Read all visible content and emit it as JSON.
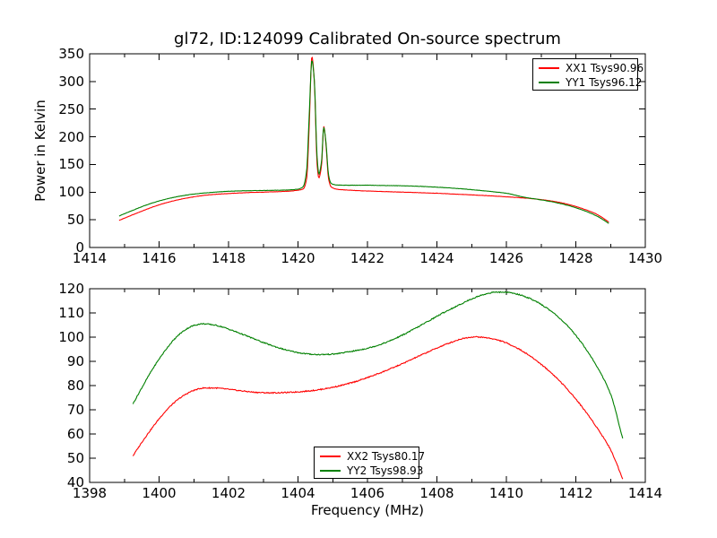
{
  "figure": {
    "background": "#ffffff"
  },
  "chart_data": [
    {
      "type": "line",
      "title": "gl72, ID:124099 Calibrated On-source spectrum",
      "xlabel": "",
      "ylabel": "Power in Kelvin",
      "xlim": [
        1414,
        1430
      ],
      "ylim": [
        0,
        350
      ],
      "xticks": [
        1414,
        1416,
        1418,
        1420,
        1422,
        1424,
        1426,
        1428,
        1430
      ],
      "xticks_minor": [
        1415,
        1417,
        1419,
        1421,
        1423,
        1425,
        1427,
        1429
      ],
      "yticks": [
        0,
        50,
        100,
        150,
        200,
        250,
        300,
        350
      ],
      "grid": false,
      "legend_position": "upper right",
      "series": [
        {
          "label": "XX1 Tsys90.96",
          "color": "#ff0000",
          "noise": 0.5,
          "seed": 1,
          "points": [
            [
              1414.85,
              49
            ],
            [
              1415.2,
              58
            ],
            [
              1415.6,
              68
            ],
            [
              1416.0,
              77
            ],
            [
              1416.5,
              85.5
            ],
            [
              1417.0,
              91.5
            ],
            [
              1417.5,
              95.5
            ],
            [
              1418.0,
              97.5
            ],
            [
              1418.5,
              99
            ],
            [
              1419.0,
              100
            ],
            [
              1419.5,
              101
            ],
            [
              1420.0,
              103.5
            ],
            [
              1420.15,
              106
            ],
            [
              1420.25,
              125
            ],
            [
              1420.32,
              215
            ],
            [
              1420.4,
              345
            ],
            [
              1420.47,
              300
            ],
            [
              1420.55,
              150
            ],
            [
              1420.6,
              126
            ],
            [
              1420.68,
              150
            ],
            [
              1420.74,
              219
            ],
            [
              1420.8,
              190
            ],
            [
              1420.88,
              124
            ],
            [
              1420.95,
              110
            ],
            [
              1421.1,
              105.5
            ],
            [
              1421.5,
              103.5
            ],
            [
              1422.0,
              102
            ],
            [
              1422.5,
              101
            ],
            [
              1423.0,
              100
            ],
            [
              1423.5,
              99
            ],
            [
              1424.0,
              98
            ],
            [
              1424.5,
              96.5
            ],
            [
              1425.0,
              95
            ],
            [
              1425.5,
              93.5
            ],
            [
              1426.0,
              91.5
            ],
            [
              1426.5,
              89.5
            ],
            [
              1427.0,
              86.5
            ],
            [
              1427.4,
              83
            ],
            [
              1427.8,
              77.5
            ],
            [
              1428.2,
              70
            ],
            [
              1428.6,
              60
            ],
            [
              1428.95,
              46
            ]
          ]
        },
        {
          "label": "YY1 Tsys96.12",
          "color": "#008000",
          "noise": 0.5,
          "seed": 2,
          "points": [
            [
              1414.85,
              57
            ],
            [
              1415.2,
              66
            ],
            [
              1415.6,
              76
            ],
            [
              1416.0,
              84
            ],
            [
              1416.5,
              91.5
            ],
            [
              1417.0,
              96.5
            ],
            [
              1417.5,
              99.5
            ],
            [
              1418.0,
              101.5
            ],
            [
              1418.5,
              102.5
            ],
            [
              1419.0,
              103
            ],
            [
              1419.5,
              103.5
            ],
            [
              1420.0,
              105.5
            ],
            [
              1420.15,
              110
            ],
            [
              1420.25,
              140
            ],
            [
              1420.32,
              235
            ],
            [
              1420.4,
              338
            ],
            [
              1420.47,
              302
            ],
            [
              1420.55,
              163
            ],
            [
              1420.6,
              133
            ],
            [
              1420.68,
              157
            ],
            [
              1420.74,
              217
            ],
            [
              1420.8,
              193
            ],
            [
              1420.88,
              131
            ],
            [
              1420.95,
              116
            ],
            [
              1421.1,
              113
            ],
            [
              1421.5,
              112.5
            ],
            [
              1422.0,
              112.5
            ],
            [
              1422.5,
              112
            ],
            [
              1423.0,
              111.5
            ],
            [
              1423.5,
              110.5
            ],
            [
              1424.0,
              109
            ],
            [
              1424.5,
              107
            ],
            [
              1425.0,
              104.5
            ],
            [
              1425.5,
              101.5
            ],
            [
              1426.0,
              98
            ],
            [
              1426.5,
              91
            ],
            [
              1427.0,
              86
            ],
            [
              1427.4,
              81.5
            ],
            [
              1427.8,
              75.5
            ],
            [
              1428.2,
              67.5
            ],
            [
              1428.6,
              57
            ],
            [
              1428.95,
              43.5
            ]
          ]
        }
      ]
    },
    {
      "type": "line",
      "title": "",
      "xlabel": "Frequency (MHz)",
      "ylabel": "",
      "xlim": [
        1398,
        1414
      ],
      "ylim": [
        40,
        120
      ],
      "xticks": [
        1398,
        1400,
        1402,
        1404,
        1406,
        1408,
        1410,
        1412,
        1414
      ],
      "xticks_minor": [
        1399,
        1401,
        1403,
        1405,
        1407,
        1409,
        1411,
        1413
      ],
      "yticks": [
        40,
        50,
        60,
        70,
        80,
        90,
        100,
        110,
        120
      ],
      "grid": false,
      "legend_position": "lower center",
      "series": [
        {
          "label": "XX2 Tsys80.17",
          "color": "#ff0000",
          "noise": 0.45,
          "seed": 3,
          "points": [
            [
              1399.25,
              51
            ],
            [
              1399.5,
              56.5
            ],
            [
              1399.8,
              62.5
            ],
            [
              1400.1,
              68
            ],
            [
              1400.4,
              72.5
            ],
            [
              1400.7,
              75.8
            ],
            [
              1401.0,
              78
            ],
            [
              1401.3,
              79
            ],
            [
              1401.6,
              79
            ],
            [
              1401.9,
              78.6
            ],
            [
              1402.2,
              78.1
            ],
            [
              1402.5,
              77.6
            ],
            [
              1402.8,
              77.2
            ],
            [
              1403.2,
              77
            ],
            [
              1403.6,
              77.1
            ],
            [
              1404.0,
              77.4
            ],
            [
              1404.5,
              78.1
            ],
            [
              1405.0,
              79.3
            ],
            [
              1405.5,
              81
            ],
            [
              1406.0,
              83.3
            ],
            [
              1406.5,
              86
            ],
            [
              1407.0,
              89
            ],
            [
              1407.5,
              92.3
            ],
            [
              1408.0,
              95.5
            ],
            [
              1408.4,
              97.8
            ],
            [
              1408.8,
              99.6
            ],
            [
              1409.1,
              100.1
            ],
            [
              1409.4,
              99.8
            ],
            [
              1409.8,
              98.6
            ],
            [
              1410.2,
              96.3
            ],
            [
              1410.6,
              93
            ],
            [
              1411.0,
              88.8
            ],
            [
              1411.4,
              83.8
            ],
            [
              1411.8,
              77.8
            ],
            [
              1412.2,
              70.8
            ],
            [
              1412.6,
              62.8
            ],
            [
              1413.0,
              53.5
            ],
            [
              1413.35,
              41.5
            ]
          ]
        },
        {
          "label": "YY2 Tsys98.93",
          "color": "#008000",
          "noise": 0.45,
          "seed": 4,
          "points": [
            [
              1399.25,
              72.5
            ],
            [
              1399.5,
              79
            ],
            [
              1399.8,
              86.5
            ],
            [
              1400.1,
              93
            ],
            [
              1400.4,
              98.5
            ],
            [
              1400.7,
              102.5
            ],
            [
              1401.0,
              104.8
            ],
            [
              1401.25,
              105.5
            ],
            [
              1401.5,
              105.2
            ],
            [
              1401.8,
              104.3
            ],
            [
              1402.1,
              102.8
            ],
            [
              1402.4,
              101.2
            ],
            [
              1402.7,
              99.5
            ],
            [
              1403.0,
              97.8
            ],
            [
              1403.4,
              95.8
            ],
            [
              1403.8,
              94.2
            ],
            [
              1404.2,
              93.2
            ],
            [
              1404.6,
              92.8
            ],
            [
              1405.0,
              93
            ],
            [
              1405.4,
              93.8
            ],
            [
              1405.8,
              94.8
            ],
            [
              1406.2,
              96.2
            ],
            [
              1406.6,
              98.2
            ],
            [
              1407.0,
              100.8
            ],
            [
              1407.4,
              103.8
            ],
            [
              1407.8,
              107
            ],
            [
              1408.2,
              110.2
            ],
            [
              1408.6,
              113
            ],
            [
              1409.0,
              115.8
            ],
            [
              1409.4,
              117.8
            ],
            [
              1409.7,
              118.6
            ],
            [
              1410.0,
              118.5
            ],
            [
              1410.3,
              117.8
            ],
            [
              1410.7,
              115.8
            ],
            [
              1411.0,
              113.5
            ],
            [
              1411.4,
              109.5
            ],
            [
              1411.8,
              104
            ],
            [
              1412.2,
              97
            ],
            [
              1412.6,
              88
            ],
            [
              1413.0,
              76.5
            ],
            [
              1413.35,
              58
            ]
          ]
        }
      ]
    }
  ]
}
